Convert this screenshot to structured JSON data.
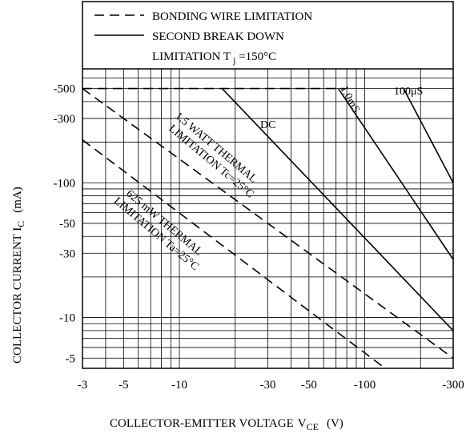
{
  "chart_data": {
    "type": "line",
    "title": "",
    "xlabel": "COLLECTOR-EMITTER VOLTAGE",
    "xlabel_symbol": "V",
    "xlabel_subscript": "CE",
    "xlabel_unit": "(V)",
    "ylabel": "COLLECTOR CURRENT I",
    "ylabel_subscript": "C",
    "ylabel_unit": "(mA)",
    "x_scale": "log",
    "y_scale": "log",
    "xlim": [
      3,
      300
    ],
    "ylim": [
      4.2,
      700
    ],
    "grid": true,
    "x_ticks": [
      {
        "value": 3,
        "label": "-3"
      },
      {
        "value": 5,
        "label": "-5"
      },
      {
        "value": 10,
        "label": "-10"
      },
      {
        "value": 30,
        "label": "-30"
      },
      {
        "value": 50,
        "label": "-50"
      },
      {
        "value": 100,
        "label": "-100"
      },
      {
        "value": 300,
        "label": "-300"
      }
    ],
    "y_ticks": [
      {
        "value": 5,
        "label": "-5"
      },
      {
        "value": 10,
        "label": "-10"
      },
      {
        "value": 30,
        "label": "-30"
      },
      {
        "value": 50,
        "label": "-50"
      },
      {
        "value": 100,
        "label": "-100"
      },
      {
        "value": 300,
        "label": "-300"
      },
      {
        "value": 500,
        "label": "-500"
      }
    ],
    "legend": {
      "placement": "top",
      "entries": [
        {
          "style": "dashed",
          "label": "BONDING WIRE LIMITATION"
        },
        {
          "style": "solid",
          "label": "SECOND BREAK DOWN"
        },
        {
          "style": "none",
          "label": "LIMITATION T",
          "subscript": "j",
          "suffix": " =150°C"
        }
      ]
    },
    "series": [
      {
        "name": "BONDING WIRE LIMITATION",
        "style": "dashed",
        "x": [
          3,
          78
        ],
        "y": [
          500,
          500
        ]
      },
      {
        "name": "DC",
        "style": "solid",
        "x": [
          17,
          300
        ],
        "y": [
          500,
          8
        ]
      },
      {
        "name": "1.0mS",
        "style": "solid",
        "x": [
          72,
          300
        ],
        "y": [
          500,
          27
        ]
      },
      {
        "name": "100μS",
        "style": "solid",
        "x": [
          162,
          300
        ],
        "y": [
          500,
          100
        ]
      },
      {
        "name": "1.5 WATT THERMAL LIMITATION Tc=25°C",
        "style": "dashed",
        "x": [
          3,
          300
        ],
        "y": [
          500,
          5
        ]
      },
      {
        "name": "625 mW THERMAL LIMITATION Ta=25°C",
        "style": "dashed",
        "x": [
          3,
          129
        ],
        "y": [
          208,
          4.2
        ]
      }
    ],
    "annotations": [
      {
        "text": "DC"
      },
      {
        "text": "1.0mS"
      },
      {
        "text": "100μS"
      },
      {
        "line1": "1.5 WATT THERMAL",
        "line2": "LIMITATION Tc=25°C"
      },
      {
        "line1": "625 mW THERMAL",
        "line2": "LIMITATION Ta=25°C"
      }
    ]
  }
}
